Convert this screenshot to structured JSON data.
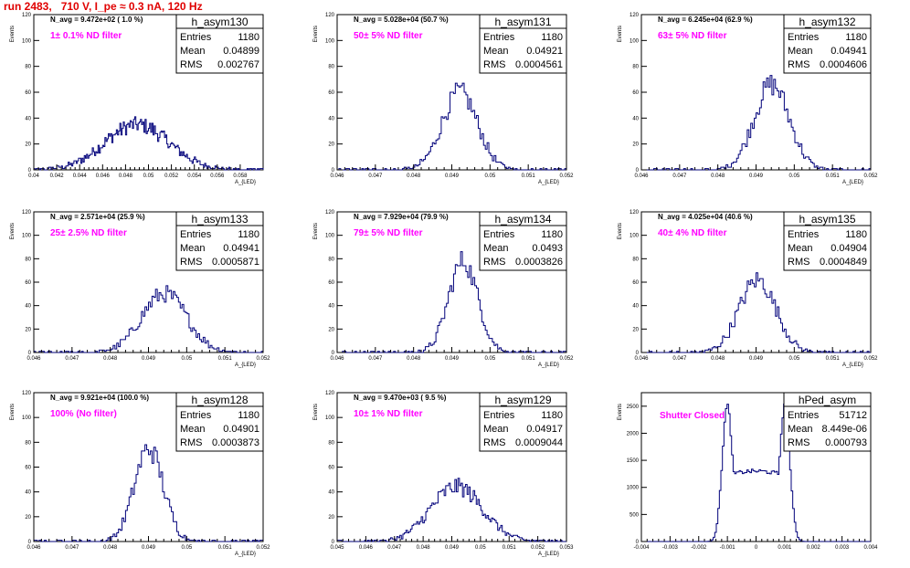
{
  "page": {
    "title": "run 2483,   710 V, I_pe ≈ 0.3 nA, 120 Hz"
  },
  "colors": {
    "histogram": "#00007a",
    "note": "#ff00ff",
    "title": "#e00000"
  },
  "stat_labels": {
    "entries": "Entries",
    "mean": "Mean",
    "rms": "RMS"
  },
  "chart_data": [
    {
      "type": "histogram",
      "name": "h_asym130",
      "n_avg": "N_avg = 9.472e+02 ( 1.0 %)",
      "note": "1± 0.1% ND filter",
      "ylabel": "Events",
      "xlabel": "A_{LED}",
      "xlim": [
        0.04,
        0.06
      ],
      "ylim": [
        0,
        120
      ],
      "xticks": [
        "0.04",
        "0.042",
        "0.044",
        "0.046",
        "0.048",
        "0.05",
        "0.052",
        "0.054",
        "0.056",
        "0.058"
      ],
      "yticks": [
        "0",
        "20",
        "40",
        "60",
        "80",
        "100",
        "120"
      ],
      "entries": "1180",
      "mean": "0.04899",
      "rms": "0.002767",
      "peak": {
        "x": 0.049,
        "sigma": 0.0028,
        "height": 35
      },
      "bins": 200
    },
    {
      "type": "histogram",
      "name": "h_asym131",
      "n_avg": "N_avg = 5.028e+04 (50.7 %)",
      "note": "50± 5% ND filter",
      "ylabel": "Events",
      "xlabel": "A_{LED}",
      "xlim": [
        0.046,
        0.052
      ],
      "ylim": [
        0,
        120
      ],
      "xticks": [
        "0.046",
        "0.047",
        "0.048",
        "0.049",
        "0.05",
        "0.051",
        "0.052"
      ],
      "yticks": [
        "0",
        "20",
        "40",
        "60",
        "80",
        "100",
        "120"
      ],
      "entries": "1180",
      "mean": "0.04921",
      "rms": "0.0004561",
      "peak": {
        "x": 0.04921,
        "sigma": 0.00046,
        "height": 60
      },
      "bins": 130
    },
    {
      "type": "histogram",
      "name": "h_asym132",
      "n_avg": "N_avg = 6.245e+04 (62.9 %)",
      "note": "63± 5% ND filter",
      "ylabel": "Events",
      "xlabel": "A_{LED}",
      "xlim": [
        0.046,
        0.052
      ],
      "ylim": [
        0,
        120
      ],
      "xticks": [
        "0.046",
        "0.047",
        "0.048",
        "0.049",
        "0.05",
        "0.051",
        "0.052"
      ],
      "yticks": [
        "0",
        "20",
        "40",
        "60",
        "80",
        "100",
        "120"
      ],
      "entries": "1180",
      "mean": "0.04941",
      "rms": "0.0004606",
      "peak": {
        "x": 0.04941,
        "sigma": 0.00046,
        "height": 66
      },
      "bins": 130
    },
    {
      "type": "histogram",
      "name": "h_asym133",
      "n_avg": "N_avg = 2.571e+04 (25.9 %)",
      "note": "25± 2.5% ND filter",
      "ylabel": "Events",
      "xlabel": "A_{LED}",
      "xlim": [
        0.046,
        0.052
      ],
      "ylim": [
        0,
        120
      ],
      "xticks": [
        "0.046",
        "0.047",
        "0.048",
        "0.049",
        "0.05",
        "0.051",
        "0.052"
      ],
      "yticks": [
        "0",
        "20",
        "40",
        "60",
        "80",
        "100",
        "120"
      ],
      "entries": "1180",
      "mean": "0.04941",
      "rms": "0.0005871",
      "peak": {
        "x": 0.04941,
        "sigma": 0.00059,
        "height": 50
      },
      "bins": 130
    },
    {
      "type": "histogram",
      "name": "h_asym134",
      "n_avg": "N_avg = 7.929e+04 (79.9 %)",
      "note": "79± 5% ND filter",
      "ylabel": "Events",
      "xlabel": "A_{LED}",
      "xlim": [
        0.046,
        0.052
      ],
      "ylim": [
        0,
        120
      ],
      "xticks": [
        "0.046",
        "0.047",
        "0.048",
        "0.049",
        "0.05",
        "0.051",
        "0.052"
      ],
      "yticks": [
        "0",
        "20",
        "40",
        "60",
        "80",
        "100",
        "120"
      ],
      "entries": "1180",
      "mean": "0.0493",
      "rms": "0.0003826",
      "peak": {
        "x": 0.0493,
        "sigma": 0.00038,
        "height": 78
      },
      "bins": 130
    },
    {
      "type": "histogram",
      "name": "h_asym135",
      "n_avg": "N_avg = 4.025e+04 (40.6 %)",
      "note": "40± 4% ND filter",
      "ylabel": "Events",
      "xlabel": "A_{LED}",
      "xlim": [
        0.046,
        0.052
      ],
      "ylim": [
        0,
        120
      ],
      "xticks": [
        "0.046",
        "0.047",
        "0.048",
        "0.049",
        "0.05",
        "0.051",
        "0.052"
      ],
      "yticks": [
        "0",
        "20",
        "40",
        "60",
        "80",
        "100",
        "120"
      ],
      "entries": "1180",
      "mean": "0.04904",
      "rms": "0.0004849",
      "peak": {
        "x": 0.04904,
        "sigma": 0.00048,
        "height": 62
      },
      "bins": 130
    },
    {
      "type": "histogram",
      "name": "h_asym128",
      "n_avg": "N_avg = 9.921e+04 (100.0 %)",
      "note": "100% (No filter)",
      "ylabel": "Events",
      "xlabel": "A_{LED}",
      "xlim": [
        0.046,
        0.052
      ],
      "ylim": [
        0,
        120
      ],
      "xticks": [
        "0.046",
        "0.047",
        "0.048",
        "0.049",
        "0.05",
        "0.051",
        "0.052"
      ],
      "yticks": [
        "0",
        "20",
        "40",
        "60",
        "80",
        "100",
        "120"
      ],
      "entries": "1180",
      "mean": "0.04901",
      "rms": "0.0003873",
      "peak": {
        "x": 0.04901,
        "sigma": 0.00038,
        "height": 75
      },
      "bins": 130
    },
    {
      "type": "histogram",
      "name": "h_asym129",
      "n_avg": "N_avg = 9.470e+03 ( 9.5 %)",
      "note": "10± 1% ND filter",
      "ylabel": "Events",
      "xlabel": "A_{LED}",
      "xlim": [
        0.045,
        0.053
      ],
      "ylim": [
        0,
        120
      ],
      "xticks": [
        "0.045",
        "0.046",
        "0.047",
        "0.048",
        "0.049",
        "0.05",
        "0.051",
        "0.052",
        "0.053"
      ],
      "yticks": [
        "0",
        "20",
        "40",
        "60",
        "80",
        "100",
        "120"
      ],
      "entries": "1180",
      "mean": "0.04917",
      "rms": "0.0009044",
      "peak": {
        "x": 0.04917,
        "sigma": 0.0009,
        "height": 44
      },
      "bins": 150
    },
    {
      "type": "histogram",
      "name": "hPed_asym",
      "n_avg": "",
      "note": "Shutter Closed",
      "ylabel": "Events",
      "xlabel": "",
      "xlim": [
        -0.004,
        0.004
      ],
      "ylim": [
        0,
        2750
      ],
      "xticks": [
        "-0.004",
        "-0.003",
        "-0.002",
        "-0.001",
        "0",
        "0.001",
        "0.002",
        "0.003",
        "0.004"
      ],
      "yticks": [
        "0",
        "500",
        "1000",
        "1500",
        "2000",
        "2500"
      ],
      "entries": "51712",
      "mean": "8.449e-06",
      "rms": "0.000793",
      "bimodal": {
        "peaks": [
          -0.001,
          0.001
        ],
        "peak_height": 2500,
        "valley": 1100
      },
      "bins": 150
    }
  ]
}
